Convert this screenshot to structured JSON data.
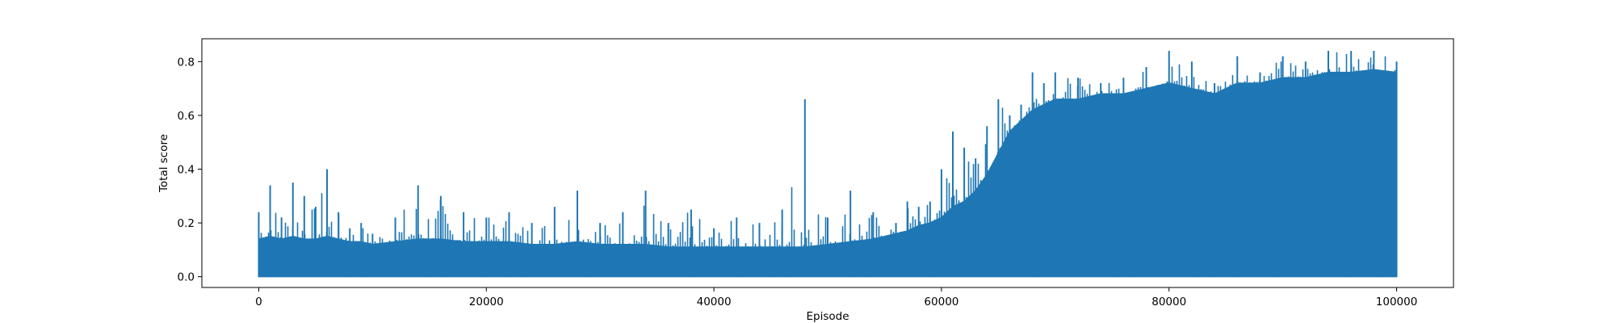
{
  "chart_data": {
    "type": "line",
    "title": "",
    "xlabel": "Episode",
    "ylabel": "Total score",
    "xlim": [
      -5000,
      105000
    ],
    "ylim": [
      -0.04,
      0.885
    ],
    "xticks": [
      0,
      20000,
      40000,
      60000,
      80000,
      100000
    ],
    "xtick_labels": [
      "0",
      "20000",
      "40000",
      "60000",
      "80000",
      "100000"
    ],
    "yticks": [
      0.0,
      0.2,
      0.4,
      0.6,
      0.8
    ],
    "ytick_labels": [
      "0.0",
      "0.2",
      "0.4",
      "0.6",
      "0.8"
    ],
    "grid": false,
    "legend": "none",
    "series_color": "#1f77b4",
    "series": [
      {
        "name": "",
        "x": [
          0,
          1000,
          2000,
          3000,
          4000,
          5000,
          6000,
          7000,
          8000,
          9000,
          10000,
          12000,
          14000,
          16000,
          18000,
          20000,
          22000,
          24000,
          26000,
          28000,
          30000,
          32000,
          34000,
          36000,
          38000,
          40000,
          42000,
          44000,
          46000,
          48000,
          50000,
          52000,
          54000,
          56000,
          57000,
          58000,
          59000,
          60000,
          61000,
          62000,
          63000,
          64000,
          65000,
          66000,
          67000,
          68000,
          69000,
          70000,
          72000,
          74000,
          76000,
          78000,
          80000,
          82000,
          84000,
          86000,
          88000,
          90000,
          92000,
          94000,
          96000,
          98000,
          100000
        ],
        "y_max": [
          0.24,
          0.34,
          0.22,
          0.35,
          0.3,
          0.26,
          0.4,
          0.24,
          0.18,
          0.2,
          0.16,
          0.22,
          0.34,
          0.3,
          0.24,
          0.22,
          0.24,
          0.2,
          0.26,
          0.32,
          0.2,
          0.24,
          0.32,
          0.2,
          0.25,
          0.18,
          0.22,
          0.2,
          0.25,
          0.66,
          0.22,
          0.32,
          0.24,
          0.2,
          0.28,
          0.26,
          0.28,
          0.4,
          0.54,
          0.48,
          0.44,
          0.56,
          0.66,
          0.6,
          0.64,
          0.76,
          0.72,
          0.76,
          0.74,
          0.72,
          0.74,
          0.78,
          0.84,
          0.8,
          0.72,
          0.82,
          0.76,
          0.82,
          0.8,
          0.84,
          0.84,
          0.84,
          0.8
        ],
        "y_body": [
          0.14,
          0.15,
          0.14,
          0.15,
          0.14,
          0.14,
          0.15,
          0.14,
          0.13,
          0.13,
          0.12,
          0.13,
          0.14,
          0.14,
          0.13,
          0.13,
          0.13,
          0.12,
          0.12,
          0.13,
          0.12,
          0.12,
          0.12,
          0.11,
          0.11,
          0.11,
          0.11,
          0.11,
          0.11,
          0.11,
          0.12,
          0.13,
          0.14,
          0.16,
          0.17,
          0.19,
          0.2,
          0.22,
          0.26,
          0.28,
          0.32,
          0.38,
          0.46,
          0.54,
          0.58,
          0.62,
          0.64,
          0.66,
          0.66,
          0.68,
          0.68,
          0.7,
          0.72,
          0.7,
          0.68,
          0.72,
          0.72,
          0.74,
          0.74,
          0.76,
          0.76,
          0.77,
          0.76
        ],
        "y_min": 0.0
      }
    ]
  }
}
